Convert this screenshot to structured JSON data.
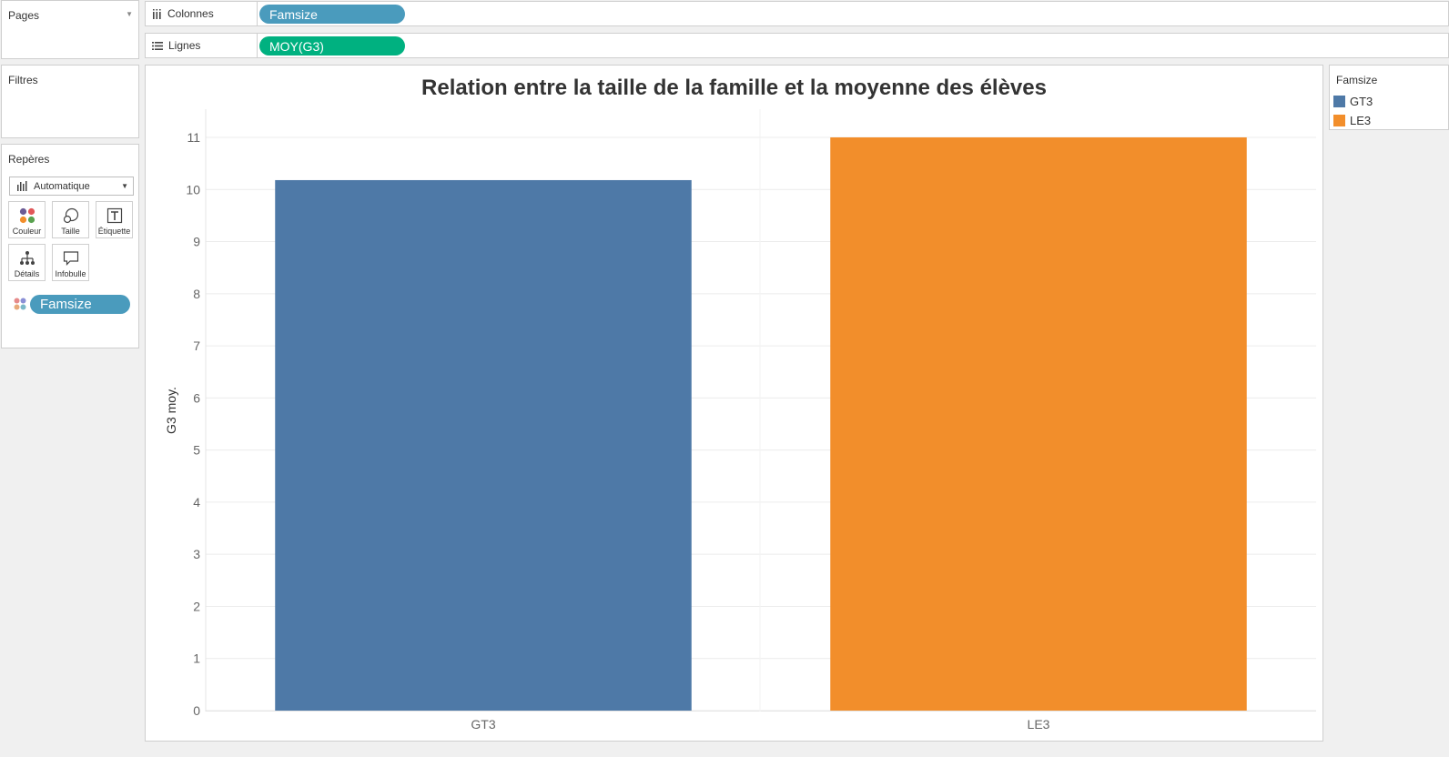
{
  "pages_panel": {
    "title": "Pages"
  },
  "columns_shelf": {
    "label": "Colonnes",
    "pill": "Famsize",
    "pill_color": "#4a9bbd"
  },
  "rows_shelf": {
    "label": "Lignes",
    "pill": "MOY(G3)",
    "pill_color": "#00b180"
  },
  "filters_panel": {
    "title": "Filtres"
  },
  "marks_panel": {
    "title": "Repères",
    "mark_type": "Automatique",
    "cards": [
      {
        "label": "Couleur",
        "icon": "color-icon"
      },
      {
        "label": "Taille",
        "icon": "size-icon"
      },
      {
        "label": "Étiquette",
        "icon": "label-icon"
      },
      {
        "label": "Détails",
        "icon": "detail-icon"
      },
      {
        "label": "Infobulle",
        "icon": "tooltip-icon"
      }
    ],
    "color_pill": "Famsize"
  },
  "legend": {
    "title": "Famsize",
    "items": [
      {
        "label": "GT3",
        "color": "#4e79a7"
      },
      {
        "label": "LE3",
        "color": "#f28e2b"
      }
    ]
  },
  "chart_data": {
    "type": "bar",
    "title": "Relation entre la taille de la famille et la moyenne des élèves",
    "xlabel": "",
    "ylabel": "G3 moy.",
    "categories": [
      "GT3",
      "LE3"
    ],
    "values": [
      10.18,
      11.0
    ],
    "colors": [
      "#4e79a7",
      "#f28e2b"
    ],
    "ylim": [
      0,
      11
    ],
    "yticks": [
      0,
      1,
      2,
      3,
      4,
      5,
      6,
      7,
      8,
      9,
      10,
      11
    ],
    "grid": true
  }
}
